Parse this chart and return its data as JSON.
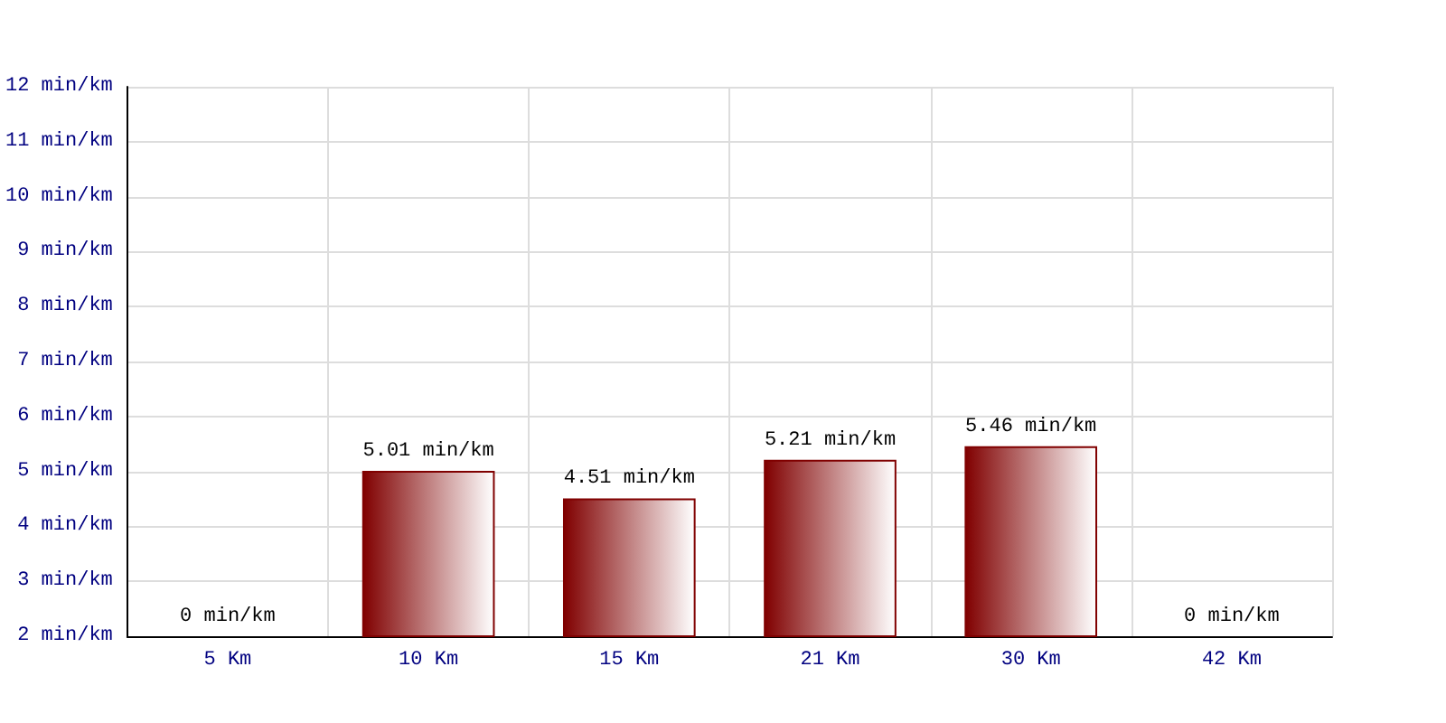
{
  "chart_data": {
    "type": "bar",
    "categories": [
      "5 Km",
      "10 Km",
      "15 Km",
      "21 Km",
      "30 Km",
      "42 Km"
    ],
    "values": [
      null,
      5.01,
      4.51,
      5.21,
      5.46,
      null
    ],
    "value_labels": [
      "0 min/km",
      "5.01 min/km",
      "4.51 min/km",
      "5.21 min/km",
      "5.46 min/km",
      "0 min/km"
    ],
    "color": "#800000",
    "ylim": [
      2,
      12
    ],
    "yticks": [
      {
        "value": 2,
        "label": "2 min/km"
      },
      {
        "value": 3,
        "label": "3 min/km"
      },
      {
        "value": 4,
        "label": "4 min/km"
      },
      {
        "value": 5,
        "label": "5 min/km"
      },
      {
        "value": 6,
        "label": "6 min/km"
      },
      {
        "value": 7,
        "label": "7 min/km"
      },
      {
        "value": 8,
        "label": "8 min/km"
      },
      {
        "value": 9,
        "label": "9 min/km"
      },
      {
        "value": 10,
        "label": "10 min/km"
      },
      {
        "value": 11,
        "label": "11 min/km"
      },
      {
        "value": 12,
        "label": "12 min/km"
      }
    ],
    "grid": true
  }
}
